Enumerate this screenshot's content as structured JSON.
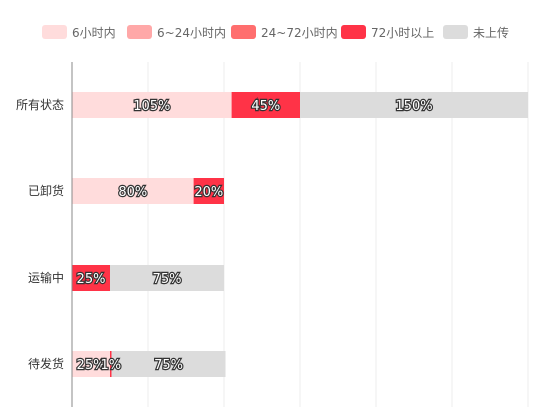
{
  "chart_data": {
    "type": "bar",
    "orientation": "horizontal",
    "stacked": true,
    "legend_position": "top",
    "grid": true,
    "categories": [
      "所有状态",
      "已卸货",
      "运输中",
      "待发货"
    ],
    "series": [
      {
        "name": "6小时内",
        "color": "#FFDCDC",
        "values": [
          105,
          80,
          0,
          25
        ],
        "labels": [
          "105%",
          "80%",
          "",
          "25%"
        ]
      },
      {
        "name": "6~24小时内",
        "color": "#FFA8A8",
        "values": [
          0,
          0,
          0,
          0
        ],
        "labels": [
          "",
          "",
          "",
          ""
        ]
      },
      {
        "name": "24~72小时内",
        "color": "#FF6E6E",
        "values": [
          0,
          0,
          0,
          0
        ],
        "labels": [
          "",
          "",
          "",
          ""
        ]
      },
      {
        "name": "72小时以上",
        "color": "#FF3347",
        "values": [
          45,
          20,
          25,
          1
        ],
        "labels": [
          "45%",
          "20%",
          "25%",
          "1%"
        ]
      },
      {
        "name": "未上传",
        "color": "#DCDCDC",
        "values": [
          150,
          0,
          75,
          75
        ],
        "labels": [
          "150%",
          "",
          "75%",
          "75%"
        ]
      }
    ],
    "xlim": [
      0,
      300
    ],
    "x_grid_step": 50
  }
}
